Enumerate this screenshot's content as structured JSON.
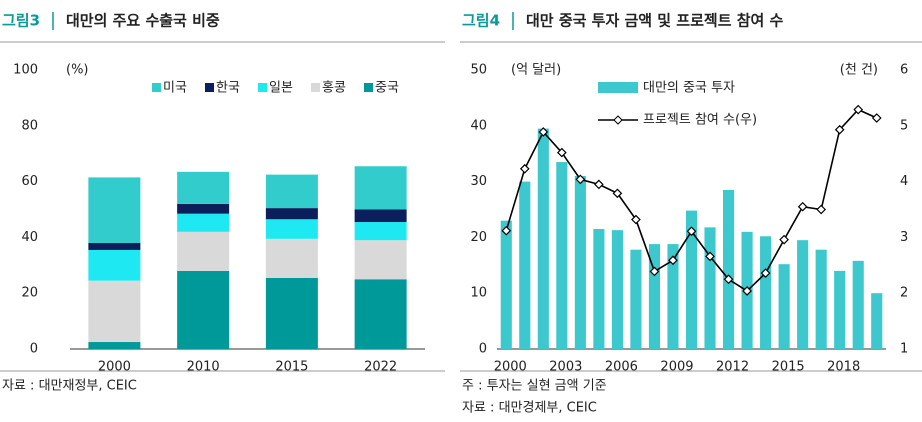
{
  "chart_data": [
    {
      "type": "stacked_bar",
      "figure_label": "그림3",
      "title": "대만의 주요 수출국 비중",
      "unit": "(%)",
      "categories": [
        "2000",
        "2010",
        "2015",
        "2022"
      ],
      "series": [
        {
          "name": "중국",
          "color": "#009999",
          "values": [
            2.5,
            28,
            25.5,
            25
          ]
        },
        {
          "name": "홍콩",
          "color": "#d9d9d9",
          "values": [
            22,
            14,
            14,
            14
          ]
        },
        {
          "name": "일본",
          "color": "#1ee8f2",
          "values": [
            11,
            6.5,
            7,
            6.5
          ]
        },
        {
          "name": "한국",
          "color": "#0a1f5c",
          "values": [
            2.5,
            3.5,
            4,
            4.5
          ]
        },
        {
          "name": "미국",
          "color": "#33cccc",
          "values": [
            23.5,
            11.5,
            12,
            15.5
          ]
        }
      ],
      "legend_order": [
        4,
        3,
        2,
        1,
        0
      ],
      "ylim": [
        0,
        100
      ],
      "yticks": [
        0,
        20,
        40,
        60,
        80,
        100
      ],
      "grid": false,
      "source": "자료 : 대만재정부, CEIC"
    },
    {
      "type": "combo",
      "figure_label": "그림4",
      "title": "대만 중국 투자 금액 및 프로젝트 참여 수",
      "unit": "(억 달러)",
      "unit2": "(천 건)",
      "categories": [
        "2000",
        null,
        null,
        "2003",
        null,
        null,
        "2006",
        null,
        null,
        "2009",
        null,
        null,
        "2012",
        null,
        null,
        "2015",
        null,
        null,
        "2018",
        null,
        null
      ],
      "series": [
        {
          "name": "대만의 중국 투자",
          "kind": "bar",
          "color": "#3cc8cc",
          "values": [
            23,
            30,
            39.5,
            33.5,
            31,
            21.5,
            21.3,
            17.8,
            18.8,
            18.8,
            24.8,
            21.8,
            28.5,
            21,
            20.2,
            15.2,
            19.5,
            17.8,
            14,
            15.8,
            10
          ]
        },
        {
          "name": "프로젝트 참여 수(우)",
          "kind": "line",
          "axis": "y2",
          "color": "#000000",
          "values": [
            3.12,
            4.23,
            4.89,
            4.52,
            4.04,
            3.95,
            3.79,
            3.32,
            2.39,
            2.59,
            3.11,
            2.66,
            2.25,
            2.04,
            2.36,
            2.96,
            3.55,
            3.5,
            4.93,
            5.29,
            5.14
          ]
        }
      ],
      "ylim": [
        0,
        50
      ],
      "yticks": [
        0,
        10,
        20,
        30,
        40,
        50
      ],
      "y2lim": [
        1,
        6
      ],
      "y2ticks": [
        1,
        2,
        3,
        4,
        5,
        6
      ],
      "grid": false,
      "note": "주 : 투자는 실현 금액 기준",
      "source": "자료 : 대만경제부, CEIC"
    }
  ]
}
